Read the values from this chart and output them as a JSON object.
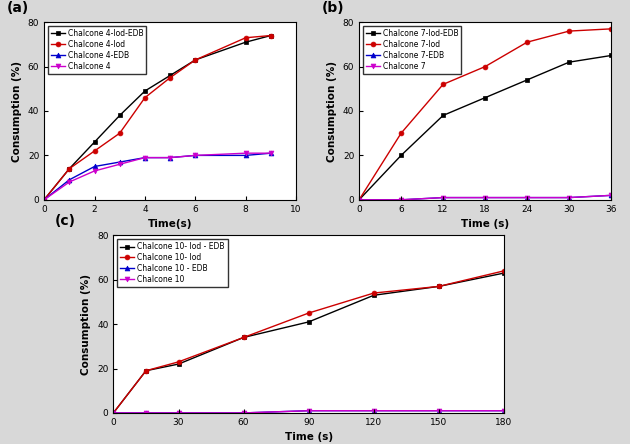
{
  "panel_a": {
    "title": "(a)",
    "xlabel": "Time(s)",
    "ylabel": "Consumption (%)",
    "xlim": [
      0,
      10
    ],
    "ylim": [
      0,
      80
    ],
    "xticks": [
      0,
      2,
      4,
      6,
      8,
      10
    ],
    "yticks": [
      0,
      20,
      40,
      60,
      80
    ],
    "series": [
      {
        "label": "Chalcone 4-Iod-EDB",
        "color": "#000000",
        "marker": "s",
        "x": [
          0,
          1,
          2,
          3,
          4,
          5,
          6,
          8,
          9
        ],
        "y": [
          0,
          14,
          26,
          38,
          49,
          56,
          63,
          71,
          74
        ]
      },
      {
        "label": "Chalcone 4-Iod",
        "color": "#cc0000",
        "marker": "o",
        "x": [
          0,
          1,
          2,
          3,
          4,
          5,
          6,
          8,
          9
        ],
        "y": [
          0,
          14,
          22,
          30,
          46,
          55,
          63,
          73,
          74
        ]
      },
      {
        "label": "Chalcone 4-EDB",
        "color": "#0000cc",
        "marker": "^",
        "x": [
          0,
          1,
          2,
          3,
          4,
          5,
          6,
          8,
          9
        ],
        "y": [
          0,
          9,
          15,
          17,
          19,
          19,
          20,
          20,
          21
        ]
      },
      {
        "label": "Chalcone 4",
        "color": "#cc00cc",
        "marker": "v",
        "x": [
          0,
          1,
          2,
          3,
          4,
          5,
          6,
          8,
          9
        ],
        "y": [
          0,
          8,
          13,
          16,
          19,
          19,
          20,
          21,
          21
        ]
      }
    ]
  },
  "panel_b": {
    "title": "(b)",
    "xlabel": "Time (s)",
    "ylabel": "Consumption (%)",
    "xlim": [
      0,
      36
    ],
    "ylim": [
      0,
      80
    ],
    "xticks": [
      0,
      6,
      12,
      18,
      24,
      30,
      36
    ],
    "yticks": [
      0,
      20,
      40,
      60,
      80
    ],
    "series": [
      {
        "label": "Chalcone 7-Iod-EDB",
        "color": "#000000",
        "marker": "s",
        "x": [
          0,
          6,
          12,
          18,
          24,
          30,
          36
        ],
        "y": [
          0,
          20,
          38,
          46,
          54,
          62,
          65
        ]
      },
      {
        "label": "Chalcone 7-Iod",
        "color": "#cc0000",
        "marker": "o",
        "x": [
          0,
          6,
          12,
          18,
          24,
          30,
          36
        ],
        "y": [
          0,
          30,
          52,
          60,
          71,
          76,
          77
        ]
      },
      {
        "label": "Chalcone 7-EDB",
        "color": "#0000cc",
        "marker": "^",
        "x": [
          0,
          6,
          12,
          18,
          24,
          30,
          36
        ],
        "y": [
          0,
          0,
          1,
          1,
          1,
          1,
          2
        ]
      },
      {
        "label": "Chalcone 7",
        "color": "#cc00cc",
        "marker": "v",
        "x": [
          0,
          6,
          12,
          18,
          24,
          30,
          36
        ],
        "y": [
          0,
          0,
          1,
          1,
          1,
          1,
          2
        ]
      }
    ]
  },
  "panel_c": {
    "title": "(c)",
    "xlabel": "Time (s)",
    "ylabel": "Consumption (%)",
    "xlim": [
      0,
      180
    ],
    "ylim": [
      0,
      80
    ],
    "xticks": [
      0,
      30,
      60,
      90,
      120,
      150,
      180
    ],
    "yticks": [
      0,
      20,
      40,
      60,
      80
    ],
    "series": [
      {
        "label": "Chalcone 10- Iod - EDB",
        "color": "#000000",
        "marker": "s",
        "x": [
          0,
          15,
          30,
          60,
          90,
          120,
          150,
          180
        ],
        "y": [
          0,
          19,
          22,
          34,
          41,
          53,
          57,
          63
        ]
      },
      {
        "label": "Chalcone 10- Iod",
        "color": "#cc0000",
        "marker": "o",
        "x": [
          0,
          15,
          30,
          60,
          90,
          120,
          150,
          180
        ],
        "y": [
          0,
          19,
          23,
          34,
          45,
          54,
          57,
          64
        ]
      },
      {
        "label": "Chalcone 10 - EDB",
        "color": "#0000cc",
        "marker": "^",
        "x": [
          0,
          15,
          30,
          60,
          90,
          120,
          150,
          180
        ],
        "y": [
          0,
          0,
          0,
          0,
          1,
          1,
          1,
          1
        ]
      },
      {
        "label": "Chalcone 10",
        "color": "#cc00cc",
        "marker": "v",
        "x": [
          0,
          15,
          30,
          60,
          90,
          120,
          150,
          180
        ],
        "y": [
          0,
          0,
          0,
          0,
          1,
          1,
          1,
          1
        ]
      }
    ]
  },
  "figure_background": "#d8d8d8",
  "axes_background": "#ffffff"
}
